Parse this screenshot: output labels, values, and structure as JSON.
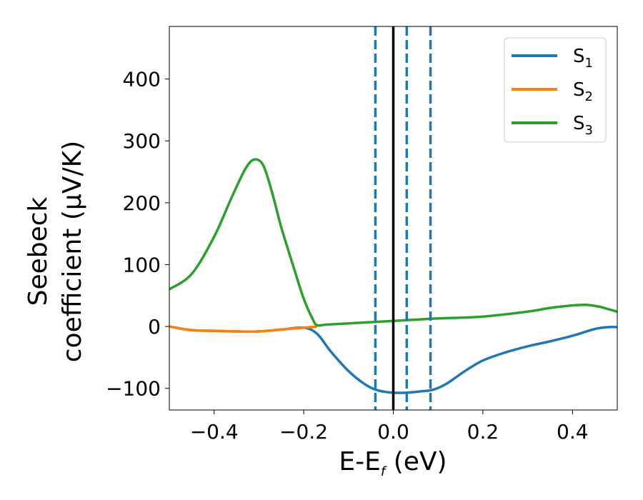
{
  "chart_data": {
    "type": "line",
    "xlabel": {
      "main": "E-E",
      "sub": "f",
      "unit": " (eV)"
    },
    "ylabel": {
      "line1": "Seebeck",
      "line2": "coefficient  (μV/K)"
    },
    "xlim": [
      -0.5,
      0.5
    ],
    "ylim": [
      -135,
      485
    ],
    "xticks": [
      -0.4,
      -0.2,
      0.0,
      0.2,
      0.4
    ],
    "xtick_labels": [
      "−0.4",
      "−0.2",
      "0.0",
      "0.2",
      "0.4"
    ],
    "yticks": [
      -100,
      0,
      100,
      200,
      300,
      400
    ],
    "ytick_labels": [
      "−100",
      "0",
      "100",
      "200",
      "300",
      "400"
    ],
    "legend": {
      "placement": "top-right",
      "entries": [
        {
          "main": "S",
          "sub": "1",
          "color": "#1f77b4"
        },
        {
          "main": "S",
          "sub": "2",
          "color": "#ff7f0e"
        },
        {
          "main": "S",
          "sub": "3",
          "color": "#2ca02c"
        }
      ]
    },
    "vlines": [
      {
        "x": -0.04,
        "style": "dashed",
        "color": "#1f77b4"
      },
      {
        "x": 0.0,
        "style": "solid",
        "color": "#000000"
      },
      {
        "x": 0.03,
        "style": "dashed",
        "color": "#1f77b4"
      },
      {
        "x": 0.083,
        "style": "dashed",
        "color": "#1f77b4"
      }
    ],
    "series": [
      {
        "color": "#1f77b4",
        "x": [
          -0.5,
          -0.45,
          -0.4,
          -0.35,
          -0.3,
          -0.25,
          -0.2,
          -0.17,
          -0.14,
          -0.1,
          -0.06,
          -0.03,
          0.0,
          0.03,
          0.06,
          0.09,
          0.12,
          0.16,
          0.2,
          0.25,
          0.3,
          0.35,
          0.4,
          0.45,
          0.48,
          0.5
        ],
        "y": [
          0,
          -6,
          -7,
          -8,
          -8,
          -5,
          -2,
          -12,
          -40,
          -72,
          -95,
          -104,
          -107,
          -107,
          -105,
          -102,
          -92,
          -72,
          -55,
          -42,
          -32,
          -24,
          -15,
          -4,
          -1,
          -1
        ]
      },
      {
        "color": "#ff7f0e",
        "x": [
          -0.5,
          -0.45,
          -0.4,
          -0.35,
          -0.3,
          -0.25,
          -0.2,
          -0.17
        ],
        "y": [
          0,
          -6,
          -7,
          -8,
          -8,
          -5,
          -2,
          0
        ]
      },
      {
        "color": "#2ca02c",
        "x": [
          -0.5,
          -0.45,
          -0.4,
          -0.36,
          -0.33,
          -0.31,
          -0.29,
          -0.27,
          -0.25,
          -0.22,
          -0.2,
          -0.18,
          -0.17,
          -0.15,
          -0.1,
          -0.05,
          0.0,
          0.05,
          0.1,
          0.2,
          0.3,
          0.35,
          0.4,
          0.43,
          0.46,
          0.48,
          0.5
        ],
        "y": [
          60,
          85,
          145,
          210,
          255,
          270,
          260,
          215,
          160,
          90,
          45,
          12,
          2,
          3,
          5,
          7,
          9,
          11,
          13,
          16,
          24,
          30,
          34,
          35,
          32,
          28,
          24
        ]
      }
    ]
  }
}
